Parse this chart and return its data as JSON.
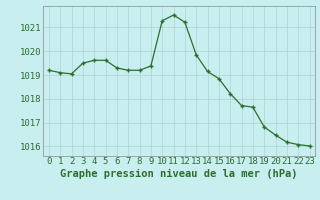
{
  "x": [
    0,
    1,
    2,
    3,
    4,
    5,
    6,
    7,
    8,
    9,
    10,
    11,
    12,
    13,
    14,
    15,
    16,
    17,
    18,
    19,
    20,
    21,
    22,
    23
  ],
  "y": [
    1019.2,
    1019.1,
    1019.05,
    1019.5,
    1019.62,
    1019.62,
    1019.3,
    1019.2,
    1019.2,
    1019.38,
    1021.28,
    1021.52,
    1021.22,
    1019.85,
    1019.15,
    1018.85,
    1018.22,
    1017.72,
    1017.65,
    1016.82,
    1016.48,
    1016.18,
    1016.08,
    1016.02
  ],
  "line_color": "#2d6e2d",
  "marker_color": "#2d6e2d",
  "bg_color": "#c8eef0",
  "grid_color": "#b0d4d4",
  "title": "Graphe pression niveau de la mer (hPa)",
  "ylabel_ticks": [
    1016,
    1017,
    1018,
    1019,
    1020,
    1021
  ],
  "xlabel_ticks": [
    0,
    1,
    2,
    3,
    4,
    5,
    6,
    7,
    8,
    9,
    10,
    11,
    12,
    13,
    14,
    15,
    16,
    17,
    18,
    19,
    20,
    21,
    22,
    23
  ],
  "xlabel_labels": [
    "0",
    "1",
    "2",
    "3",
    "4",
    "5",
    "6",
    "7",
    "8",
    "9",
    "10",
    "11",
    "12",
    "13",
    "14",
    "15",
    "16",
    "17",
    "18",
    "19",
    "20",
    "21",
    "22",
    "23"
  ],
  "xlim": [
    -0.5,
    23.5
  ],
  "ylim": [
    1015.6,
    1021.9
  ],
  "title_fontsize": 7.5,
  "tick_fontsize": 6.5
}
